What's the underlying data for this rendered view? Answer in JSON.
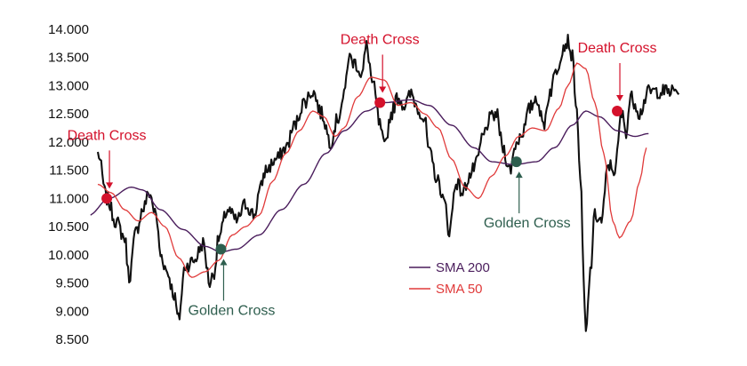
{
  "chart_data": {
    "type": "line",
    "title": "",
    "xlabel": "",
    "ylabel": "",
    "ylim": [
      8500,
      14000
    ],
    "y_tick_labels": [
      "14.000",
      "13.500",
      "13.000",
      "12.500",
      "12.000",
      "11.500",
      "11.000",
      "10.500",
      "10.000",
      "9.500",
      "9.000",
      "8.500"
    ],
    "y_tick_values": [
      14000,
      13500,
      13000,
      12500,
      12000,
      11500,
      11000,
      10500,
      10000,
      9500,
      9000,
      8500
    ],
    "x_count": 260,
    "grid": false,
    "legend_position": "center-bottom",
    "price_anchors": [
      [
        0,
        11800
      ],
      [
        4,
        11000
      ],
      [
        8,
        10600
      ],
      [
        12,
        10300
      ],
      [
        14,
        9600
      ],
      [
        17,
        10400
      ],
      [
        20,
        10800
      ],
      [
        23,
        11100
      ],
      [
        26,
        10700
      ],
      [
        28,
        10000
      ],
      [
        31,
        9700
      ],
      [
        34,
        9300
      ],
      [
        36,
        8850
      ],
      [
        39,
        9800
      ],
      [
        43,
        9900
      ],
      [
        47,
        10200
      ],
      [
        50,
        9500
      ],
      [
        52,
        9700
      ],
      [
        54,
        10300
      ],
      [
        58,
        10800
      ],
      [
        62,
        10600
      ],
      [
        66,
        10900
      ],
      [
        70,
        10700
      ],
      [
        72,
        11100
      ],
      [
        75,
        11500
      ],
      [
        80,
        11700
      ],
      [
        84,
        11900
      ],
      [
        88,
        12300
      ],
      [
        92,
        12700
      ],
      [
        96,
        12900
      ],
      [
        100,
        12500
      ],
      [
        104,
        12000
      ],
      [
        107,
        12400
      ],
      [
        110,
        12800
      ],
      [
        112,
        13500
      ],
      [
        115,
        13400
      ],
      [
        118,
        13200
      ],
      [
        120,
        13700
      ],
      [
        123,
        13000
      ],
      [
        126,
        12300
      ],
      [
        128,
        11900
      ],
      [
        131,
        12500
      ],
      [
        134,
        12800
      ],
      [
        137,
        12650
      ],
      [
        140,
        12850
      ],
      [
        143,
        12600
      ],
      [
        146,
        12400
      ],
      [
        148,
        11800
      ],
      [
        152,
        11300
      ],
      [
        155,
        10900
      ],
      [
        157,
        10400
      ],
      [
        160,
        11300
      ],
      [
        163,
        11100
      ],
      [
        166,
        11400
      ],
      [
        169,
        11600
      ],
      [
        172,
        12100
      ],
      [
        175,
        12400
      ],
      [
        178,
        12500
      ],
      [
        181,
        11900
      ],
      [
        184,
        11500
      ],
      [
        187,
        12000
      ],
      [
        190,
        12200
      ],
      [
        193,
        12600
      ],
      [
        196,
        12800
      ],
      [
        199,
        12300
      ],
      [
        202,
        12900
      ],
      [
        205,
        13300
      ],
      [
        208,
        13700
      ],
      [
        210,
        13800
      ],
      [
        212,
        13500
      ],
      [
        214,
        12500
      ],
      [
        216,
        11000
      ],
      [
        217,
        9500
      ],
      [
        218,
        8560
      ],
      [
        220,
        9700
      ],
      [
        222,
        10700
      ],
      [
        225,
        10600
      ],
      [
        228,
        11600
      ],
      [
        231,
        11500
      ],
      [
        234,
        12500
      ],
      [
        236,
        12200
      ],
      [
        238,
        12800
      ],
      [
        240,
        12700
      ],
      [
        242,
        12500
      ],
      [
        245,
        12800
      ],
      [
        246,
        12900
      ]
    ],
    "series": [
      {
        "name": "SMA 200",
        "color": "#4a1d5c",
        "anchors": [
          [
            -4,
            10700
          ],
          [
            5,
            11000
          ],
          [
            15,
            11200
          ],
          [
            20,
            11150
          ],
          [
            28,
            10800
          ],
          [
            38,
            10450
          ],
          [
            48,
            10150
          ],
          [
            55,
            10050
          ],
          [
            62,
            10100
          ],
          [
            72,
            10350
          ],
          [
            82,
            10800
          ],
          [
            92,
            11250
          ],
          [
            102,
            11800
          ],
          [
            110,
            12200
          ],
          [
            120,
            12550
          ],
          [
            128,
            12700
          ],
          [
            140,
            12750
          ],
          [
            148,
            12650
          ],
          [
            158,
            12300
          ],
          [
            168,
            11900
          ],
          [
            176,
            11650
          ],
          [
            186,
            11600
          ],
          [
            196,
            11650
          ],
          [
            204,
            11900
          ],
          [
            212,
            12300
          ],
          [
            218,
            12550
          ],
          [
            224,
            12450
          ],
          [
            232,
            12200
          ],
          [
            240,
            12100
          ],
          [
            246,
            12150
          ]
        ]
      },
      {
        "name": "SMA 50",
        "color": "#e03a3a",
        "anchors": [
          [
            0,
            11250
          ],
          [
            6,
            11100
          ],
          [
            12,
            10800
          ],
          [
            18,
            10600
          ],
          [
            24,
            10750
          ],
          [
            30,
            10500
          ],
          [
            36,
            9950
          ],
          [
            42,
            9600
          ],
          [
            48,
            9700
          ],
          [
            54,
            9900
          ],
          [
            60,
            10350
          ],
          [
            66,
            10500
          ],
          [
            72,
            10700
          ],
          [
            78,
            11300
          ],
          [
            84,
            11800
          ],
          [
            90,
            12200
          ],
          [
            96,
            12550
          ],
          [
            101,
            12450
          ],
          [
            106,
            12100
          ],
          [
            110,
            12250
          ],
          [
            116,
            12800
          ],
          [
            122,
            13150
          ],
          [
            128,
            13100
          ],
          [
            134,
            12650
          ],
          [
            140,
            12700
          ],
          [
            146,
            12500
          ],
          [
            152,
            12250
          ],
          [
            158,
            11700
          ],
          [
            164,
            11200
          ],
          [
            170,
            11000
          ],
          [
            176,
            11400
          ],
          [
            182,
            11750
          ],
          [
            188,
            12100
          ],
          [
            194,
            12250
          ],
          [
            200,
            12200
          ],
          [
            206,
            12600
          ],
          [
            210,
            13000
          ],
          [
            214,
            13400
          ],
          [
            218,
            13300
          ],
          [
            222,
            12700
          ],
          [
            226,
            11800
          ],
          [
            230,
            10600
          ],
          [
            233,
            10300
          ],
          [
            238,
            10600
          ],
          [
            242,
            11300
          ],
          [
            245,
            11900
          ]
        ]
      }
    ],
    "annotations": [
      {
        "label": "Death Cross",
        "kind": "death",
        "x": 4,
        "y": 11000
      },
      {
        "label": "Golden Cross",
        "kind": "golden",
        "x": 55,
        "y": 10100
      },
      {
        "label": "Death Cross",
        "kind": "death",
        "x": 126,
        "y": 12700
      },
      {
        "label": "Golden Cross",
        "kind": "golden",
        "x": 187,
        "y": 11650
      },
      {
        "label": "Death Cross",
        "kind": "death",
        "x": 232,
        "y": 12550
      }
    ],
    "colors": {
      "price": "#111111",
      "death": "#d4112b",
      "golden": "#2e5e4e"
    }
  }
}
